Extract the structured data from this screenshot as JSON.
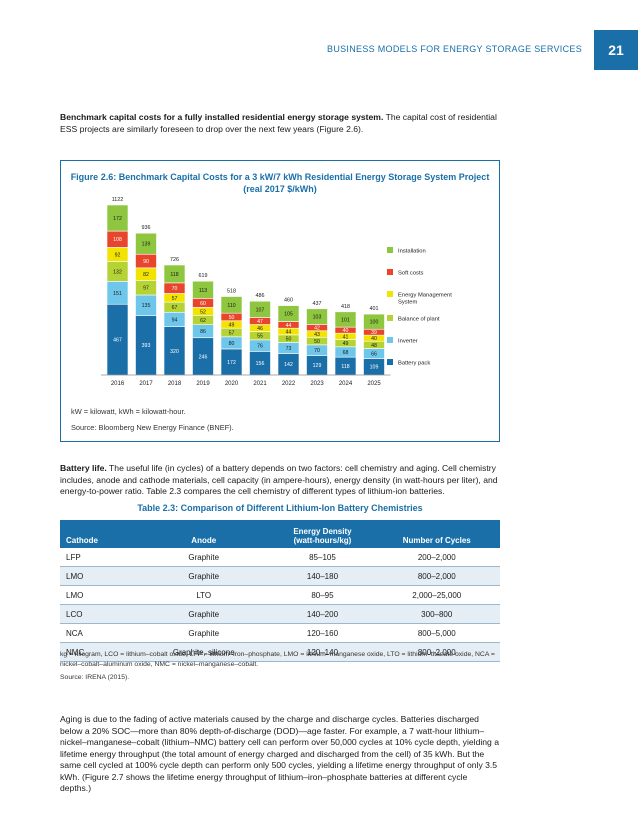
{
  "header": {
    "section_title": "BUSINESS MODELS FOR ENERGY STORAGE SERVICES",
    "page_number": "21"
  },
  "intro": {
    "lead": "Benchmark capital costs for a fully installed residential energy storage system.",
    "body": " The capital cost of residential ESS projects are similarly foreseen to drop over the next few years (Figure 2.6)."
  },
  "figure": {
    "title_line1": "Figure 2.6: Benchmark Capital Costs for a 3 kW/7 kWh Residential Energy Storage System Project",
    "title_line2": "(real 2017 $/kWh)",
    "note": "kW = kilowatt, kWh = kilowatt-hour.",
    "source": "Source: Bloomberg New Energy Finance (BNEF)."
  },
  "chart_data": {
    "type": "bar",
    "stacked": true,
    "categories": [
      "2016",
      "2017",
      "2018",
      "2019",
      "2020",
      "2021",
      "2022",
      "2023",
      "2024",
      "2025"
    ],
    "totals": [
      1122,
      936,
      726,
      619,
      518,
      486,
      460,
      437,
      418,
      401
    ],
    "series": [
      {
        "name": "Battery pack",
        "color": "#1a6fa8",
        "values": [
          467,
          393,
          320,
          246,
          172,
          156,
          142,
          129,
          118,
          109
        ]
      },
      {
        "name": "Inverter",
        "color": "#6ec6ea",
        "values": [
          151,
          135,
          94,
          86,
          80,
          76,
          73,
          70,
          68,
          66
        ]
      },
      {
        "name": "Balance of plant",
        "color": "#b5d334",
        "values": [
          132,
          97,
          67,
          62,
          57,
          55,
          50,
          50,
          49,
          48
        ]
      },
      {
        "name": "Energy Management System",
        "color": "#f2e300",
        "values": [
          92,
          82,
          57,
          52,
          49,
          46,
          44,
          43,
          41,
          40
        ]
      },
      {
        "name": "Soft costs",
        "color": "#e8452c",
        "values": [
          108,
          90,
          70,
          60,
          50,
          47,
          44,
          42,
          40,
          39
        ]
      },
      {
        "name": "Installation",
        "color": "#8ec63f",
        "values": [
          172,
          139,
          118,
          113,
          110,
          107,
          105,
          103,
          101,
          100
        ]
      }
    ],
    "legend_order": [
      "Installation",
      "Soft costs",
      "Energy Management System",
      "Balance of plant",
      "Inverter",
      "Battery pack"
    ],
    "legend_position": "right",
    "grid": false,
    "ylim": [
      0,
      1122
    ]
  },
  "battery_life": {
    "lead": "Battery life.",
    "body": " The useful life (in cycles) of a battery depends on two factors: cell chemistry and aging. Cell chemistry includes, anode and cathode materials, cell capacity (in ampere-hours), energy density (in watt-hours per liter), and energy-to-power ratio. Table 2.3 compares the cell chemistry of different types of lithium-ion batteries."
  },
  "table": {
    "title": "Table 2.3: Comparison of Different Lithium-Ion Battery Chemistries",
    "headers": {
      "cathode": "Cathode",
      "anode": "Anode",
      "density": "Energy Density\n(watt-hours/kg)",
      "cycles": "Number of Cycles"
    },
    "rows": [
      {
        "cathode": "LFP",
        "anode": "Graphite",
        "density": "85–105",
        "cycles": "200–2,000"
      },
      {
        "cathode": "LMO",
        "anode": "Graphite",
        "density": "140–180",
        "cycles": "800–2,000"
      },
      {
        "cathode": "LMO",
        "anode": "LTO",
        "density": "80–95",
        "cycles": "2,000–25,000"
      },
      {
        "cathode": "LCO",
        "anode": "Graphite",
        "density": "140–200",
        "cycles": "300–800"
      },
      {
        "cathode": "NCA",
        "anode": "Graphite",
        "density": "120–160",
        "cycles": "800–5,000"
      },
      {
        "cathode": "NMC",
        "anode": "Graphite, silicone",
        "density": "120–140",
        "cycles": "800–2,000"
      }
    ],
    "note": "kg = kilogram, LCO = lithium–cobalt oxide, LFP = lithium–iron–phosphate, LMO = lithium–manganese oxide, LTO = lithium–titanate oxide, NCA = nickel–cobalt–aluminum oxide, NMC = nickel–manganese–cobalt.",
    "source": "Source: IRENA (2015)."
  },
  "aging": {
    "body": " Aging is due to the fading of active materials caused by the charge and discharge cycles. Batteries discharged below a 20% SOC—more than 80% depth-of-discharge (DOD)—age faster. For example, a 7 watt-hour lithium–nickel–manganese–cobalt (lithium–NMC) battery cell can perform over 50,000 cycles at 10% cycle depth, yielding a lifetime energy throughput (the total amount of energy charged and discharged from the cell) of 35 kWh. But the same cell cycled at 100% cycle depth can perform only 500 cycles, yielding a lifetime energy throughput of only 3.5 kWh. (Figure 2.7 shows the lifetime energy throughput of lithium–iron–phosphate batteries at different cycle depths.)"
  }
}
